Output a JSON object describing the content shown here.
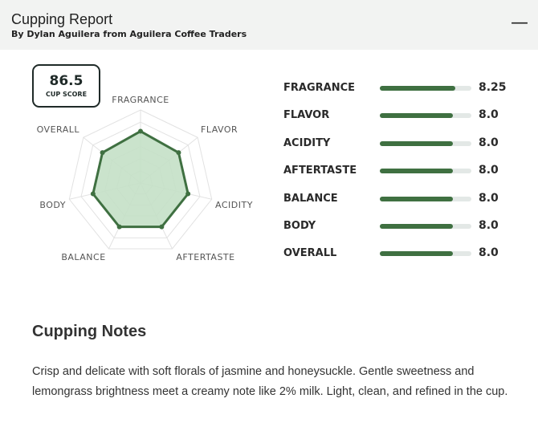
{
  "header": {
    "title": "Cupping Report",
    "subtitle": "By Dylan Aguilera from Aguilera Coffee Traders",
    "collapse_icon": "minus-icon"
  },
  "cup_score": {
    "value": "86.5",
    "label": "CUP SCORE"
  },
  "chart_data": {
    "type": "radar",
    "categories": [
      "FRAGRANCE",
      "FLAVOR",
      "ACIDITY",
      "AFTERTASTE",
      "BALANCE",
      "BODY",
      "OVERALL"
    ],
    "values": [
      8.25,
      8.0,
      8.0,
      8.0,
      8.0,
      8.0,
      8.0
    ],
    "rlim": [
      4,
      10
    ],
    "grid": true,
    "colors": {
      "line": "#3f7041",
      "fill": "#c4e0c6"
    }
  },
  "scores": [
    {
      "label": "FRAGRANCE",
      "value": "8.25",
      "fraction": 0.825
    },
    {
      "label": "FLAVOR",
      "value": "8.0",
      "fraction": 0.8
    },
    {
      "label": "ACIDITY",
      "value": "8.0",
      "fraction": 0.8
    },
    {
      "label": "AFTERTASTE",
      "value": "8.0",
      "fraction": 0.8
    },
    {
      "label": "BALANCE",
      "value": "8.0",
      "fraction": 0.8
    },
    {
      "label": "BODY",
      "value": "8.0",
      "fraction": 0.8
    },
    {
      "label": "OVERALL",
      "value": "8.0",
      "fraction": 0.8
    }
  ],
  "notes": {
    "heading": "Cupping Notes",
    "text": "Crisp and delicate with soft florals of jasmine and honeysuckle. Gentle sweetness and lemongrass brightness meet a creamy note like 2% milk. Light, clean, and refined in the cup."
  }
}
